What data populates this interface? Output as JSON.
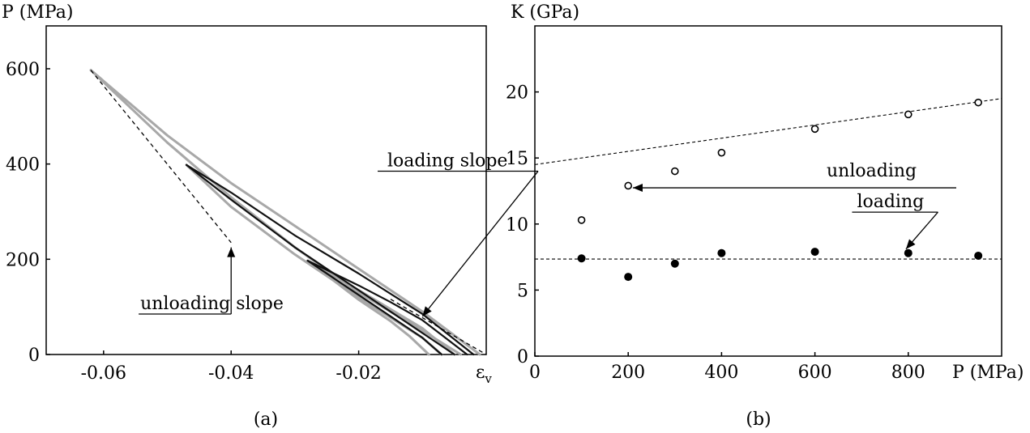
{
  "chart_data": [
    {
      "id": "a",
      "type": "line",
      "caption": "(a)",
      "ylabel": "P (MPa)",
      "xlabel": "ε_v",
      "xlabel_main": "ε",
      "xlabel_sub": "v",
      "xlim": [
        -0.069,
        0.0
      ],
      "ylim": [
        0,
        690
      ],
      "xticks": [
        -0.06,
        -0.04,
        -0.02
      ],
      "xtick_labels": [
        "-0.06",
        "-0.04",
        "-0.02"
      ],
      "yticks": [
        0,
        200,
        400,
        600
      ],
      "ytick_labels": [
        "0",
        "200",
        "400",
        "600"
      ],
      "grid": false,
      "series": [
        {
          "style": "gray",
          "x": [
            -0.062,
            -0.05,
            -0.04,
            -0.03,
            -0.02,
            -0.01,
            -0.004
          ],
          "y": [
            597,
            445,
            330,
            225,
            130,
            50,
            0
          ]
        },
        {
          "style": "gray",
          "x": [
            -0.062,
            -0.05,
            -0.04,
            -0.03,
            -0.02,
            -0.01,
            -0.001
          ],
          "y": [
            597,
            460,
            360,
            270,
            180,
            90,
            0
          ]
        },
        {
          "style": "black",
          "x": [
            -0.047,
            -0.04,
            -0.03,
            -0.02,
            -0.01,
            -0.005
          ],
          "y": [
            398,
            325,
            225,
            135,
            45,
            0
          ]
        },
        {
          "style": "black",
          "x": [
            -0.047,
            -0.04,
            -0.03,
            -0.02,
            -0.01,
            -0.002
          ],
          "y": [
            398,
            340,
            250,
            170,
            85,
            0
          ]
        },
        {
          "style": "gray",
          "x": [
            -0.047,
            -0.04,
            -0.03,
            -0.02,
            -0.01,
            -0.007
          ],
          "y": [
            398,
            310,
            210,
            120,
            35,
            0
          ]
        },
        {
          "style": "black",
          "x": [
            -0.028,
            -0.02,
            -0.015,
            -0.01,
            -0.007
          ],
          "y": [
            197,
            125,
            80,
            35,
            0
          ]
        },
        {
          "style": "black",
          "x": [
            -0.028,
            -0.02,
            -0.015,
            -0.01,
            -0.003
          ],
          "y": [
            197,
            145,
            110,
            72,
            0
          ]
        },
        {
          "style": "gray",
          "x": [
            -0.028,
            -0.02,
            -0.015,
            -0.012,
            -0.009
          ],
          "y": [
            197,
            115,
            70,
            38,
            0
          ]
        },
        {
          "style": "gray",
          "x": [
            -0.028,
            -0.02,
            -0.015,
            -0.01,
            -0.005
          ],
          "y": [
            197,
            135,
            95,
            55,
            0
          ]
        }
      ],
      "reference_lines": [
        {
          "name": "unloading slope",
          "x": [
            -0.062,
            -0.04
          ],
          "y": [
            597,
            235
          ]
        },
        {
          "name": "loading slope",
          "x": [
            -0.015,
            0.0
          ],
          "y": [
            116,
            0
          ]
        }
      ],
      "annotations": [
        {
          "text": "loading slope",
          "x": -0.0155,
          "y": 385,
          "arrow_to": [
            -0.01,
            80
          ]
        },
        {
          "text": "unloading slope",
          "x": -0.0545,
          "y": 85,
          "arrow_to": [
            -0.04,
            225
          ]
        }
      ]
    },
    {
      "id": "b",
      "type": "scatter",
      "caption": "(b)",
      "ylabel": "K (GPa)",
      "xlabel": "P (MPa)",
      "xlim": [
        0,
        1000
      ],
      "ylim": [
        0,
        25
      ],
      "xticks": [
        0,
        200,
        400,
        600,
        800
      ],
      "xtick_labels": [
        "0",
        "200",
        "400",
        "600",
        "800"
      ],
      "yticks": [
        0,
        5,
        10,
        15,
        20
      ],
      "ytick_labels": [
        "0",
        "5",
        "10",
        "15",
        "20"
      ],
      "grid": false,
      "series": [
        {
          "name": "unloading",
          "marker": "open",
          "x": [
            100,
            200,
            300,
            400,
            600,
            800,
            950
          ],
          "y": [
            10.3,
            12.9,
            14.0,
            15.4,
            17.2,
            18.3,
            19.2
          ]
        },
        {
          "name": "loading",
          "marker": "filled",
          "x": [
            100,
            200,
            300,
            400,
            600,
            800,
            950
          ],
          "y": [
            7.4,
            6.0,
            7.0,
            7.8,
            7.9,
            7.8,
            7.6
          ]
        }
      ],
      "fit_lines": [
        {
          "series": "unloading",
          "x": [
            0,
            1000
          ],
          "y": [
            14.5,
            19.5
          ]
        },
        {
          "series": "loading",
          "x": [
            0,
            1000
          ],
          "y": [
            7.35,
            7.35
          ]
        }
      ],
      "annotations": [
        {
          "text": "unloading",
          "x": 625,
          "y": 13.6,
          "arrow_to": [
            210,
            12.9
          ]
        },
        {
          "text": "loading",
          "x": 690,
          "y": 10.9,
          "arrow_to": [
            795,
            8.1
          ]
        }
      ]
    }
  ]
}
